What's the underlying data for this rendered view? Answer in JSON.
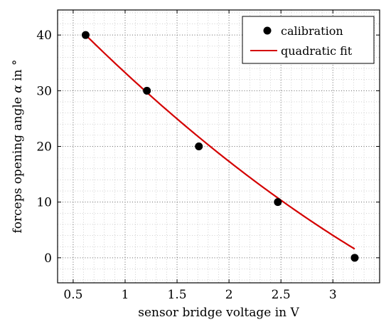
{
  "chart_data": {
    "type": "scatter",
    "title": "",
    "xlabel": "sensor bridge voltage in V",
    "ylabel_prefix": "forceps opening angle ",
    "ylabel_symbol": "α",
    "ylabel_suffix": " in °",
    "xlim": [
      0.35,
      3.45
    ],
    "ylim": [
      -4.5,
      44.5
    ],
    "x_ticks": [
      0.5,
      1,
      1.5,
      2,
      2.5,
      3
    ],
    "x_tick_labels": [
      "0.5",
      "1",
      "1.5",
      "2",
      "2.5",
      "3"
    ],
    "y_ticks": [
      0,
      10,
      20,
      30,
      40
    ],
    "y_tick_labels": [
      "0",
      "10",
      "20",
      "30",
      "40"
    ],
    "grid": true,
    "legend_position": "top-right",
    "series": [
      {
        "name": "calibration",
        "type": "scatter",
        "color": "#000000",
        "x": [
          0.62,
          1.21,
          1.71,
          2.47,
          3.21
        ],
        "y": [
          40,
          30,
          20,
          10,
          0
        ]
      },
      {
        "name": "quadratic fit",
        "type": "line",
        "color": "#d40000",
        "coefficients": {
          "a": 1.33,
          "b": -19.93,
          "c": 51.85
        },
        "x_range": [
          0.62,
          3.21
        ]
      }
    ]
  }
}
